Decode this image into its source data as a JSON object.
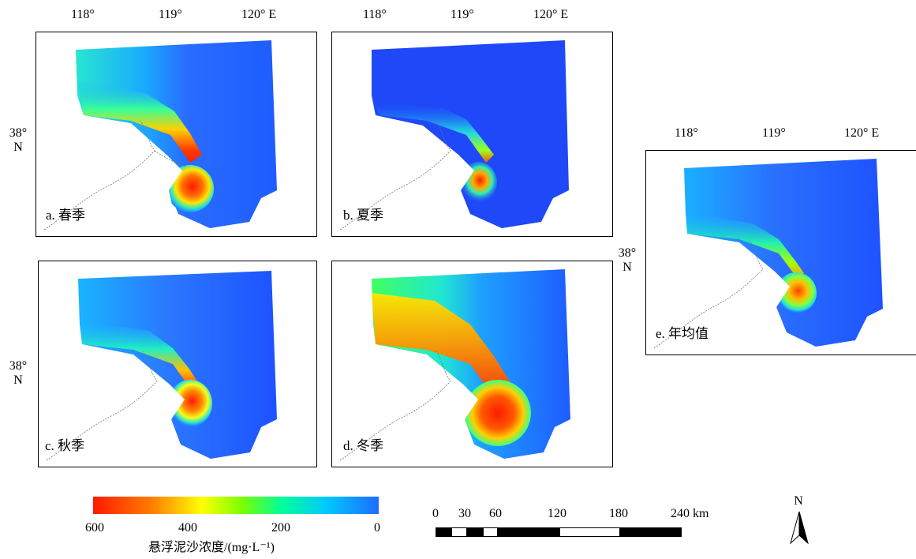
{
  "lon_ticks": [
    "118°",
    "119°",
    "120° E"
  ],
  "lat_ticks": {
    "deg": "38°",
    "hemi": "N"
  },
  "panels": [
    {
      "label": "a. 春季"
    },
    {
      "label": "b. 夏季"
    },
    {
      "label": "c. 秋季"
    },
    {
      "label": "d. 冬季"
    },
    {
      "label": "e. 年均值"
    }
  ],
  "legend": {
    "ticks": [
      "600",
      "400",
      "200",
      "0"
    ],
    "title": "悬浮泥沙浓度/(mg·L⁻¹)",
    "colors": [
      "#ff1a00",
      "#ffff00",
      "#7cff00",
      "#00ff9a",
      "#00c8ff",
      "#1e6bff"
    ]
  },
  "scale_bar": {
    "ticks": [
      "0",
      "30",
      "60",
      "120",
      "180",
      "240 km"
    ]
  },
  "north_arrow": {
    "label": "N",
    "icon": "north-arrow-icon"
  }
}
